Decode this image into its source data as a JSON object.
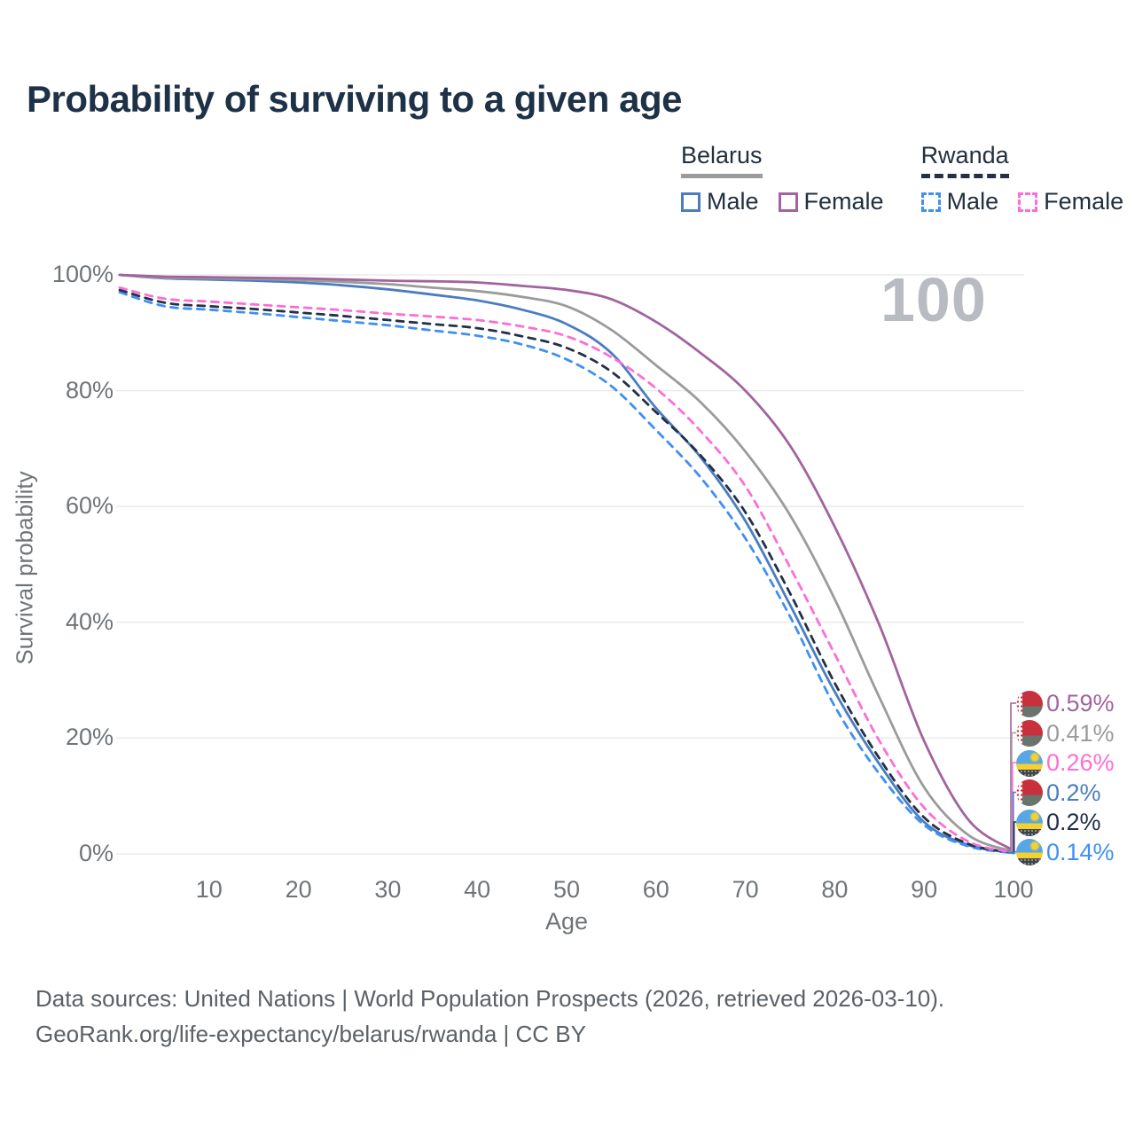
{
  "title": "Probability of surviving to a given age",
  "watermark_age": "100",
  "legend": {
    "groups": [
      {
        "country": "Belarus",
        "line_style": "solid",
        "underline_color": "#9b9b9b",
        "items": [
          {
            "label": "Male",
            "color": "#4a7dbf"
          },
          {
            "label": "Female",
            "color": "#a2649e"
          }
        ]
      },
      {
        "country": "Rwanda",
        "line_style": "dashed",
        "underline_color": "#233047",
        "items": [
          {
            "label": "Male",
            "color": "#4090f2"
          },
          {
            "label": "Female",
            "color": "#fc6ed6"
          }
        ]
      }
    ]
  },
  "axes": {
    "y_title": "Survival probability",
    "x_title": "Age"
  },
  "chart_data": {
    "type": "line",
    "title": "Probability of surviving to a given age",
    "xlabel": "Age",
    "ylabel": "Survival probability",
    "xlim": [
      0,
      100
    ],
    "ylim": [
      0,
      100
    ],
    "x_ticks": [
      10,
      20,
      30,
      40,
      50,
      60,
      70,
      80,
      90,
      100
    ],
    "y_ticks": [
      0,
      20,
      40,
      60,
      80,
      100
    ],
    "y_tick_labels": [
      "0%",
      "20%",
      "40%",
      "60%",
      "80%",
      "100%"
    ],
    "grid": "horizontal",
    "gridline_color": "#e6e8ea",
    "hover_age": 100,
    "x": [
      0,
      5,
      10,
      15,
      20,
      25,
      30,
      35,
      40,
      45,
      50,
      55,
      60,
      65,
      70,
      75,
      80,
      85,
      90,
      95,
      100
    ],
    "series": [
      {
        "name": "Belarus Female",
        "country": "Belarus",
        "sex": "Female",
        "color": "#a2649e",
        "dash": false,
        "flag": "belarus",
        "end_label": "0.59%",
        "values": [
          100,
          99.7,
          99.6,
          99.5,
          99.4,
          99.2,
          99.0,
          98.9,
          98.7,
          98.1,
          97.4,
          95.8,
          91.9,
          86.5,
          80.0,
          70.5,
          56.5,
          39.5,
          19.5,
          5.8,
          0.59
        ]
      },
      {
        "name": "Belarus Both sexes",
        "country": "Belarus",
        "sex": "Both",
        "color": "#9b9b9b",
        "dash": false,
        "flag": "belarus",
        "end_label": "0.41%",
        "values": [
          100,
          99.5,
          99.4,
          99.3,
          99.1,
          98.8,
          98.4,
          97.8,
          97.2,
          96.2,
          94.6,
          90.5,
          84.4,
          78.0,
          69.5,
          58.5,
          44.0,
          27.0,
          11.5,
          3.2,
          0.41
        ]
      },
      {
        "name": "Rwanda Female",
        "country": "Rwanda",
        "sex": "Female",
        "color": "#fc6ed6",
        "dash": true,
        "flag": "rwanda",
        "end_label": "0.26%",
        "values": [
          97.8,
          95.9,
          95.4,
          94.9,
          94.4,
          93.9,
          93.3,
          92.8,
          92.2,
          91.1,
          89.4,
          85.8,
          80.4,
          73.0,
          63.5,
          49.5,
          34.5,
          19.5,
          8.0,
          2.1,
          0.26
        ]
      },
      {
        "name": "Belarus Male",
        "country": "Belarus",
        "sex": "Male",
        "color": "#4a7dbf",
        "dash": false,
        "flag": "belarus",
        "end_label": "0.2%",
        "values": [
          100,
          99.4,
          99.2,
          99.0,
          98.7,
          98.2,
          97.5,
          96.6,
          95.6,
          94.0,
          91.5,
          86.5,
          77.0,
          68.5,
          57.5,
          43.0,
          28.0,
          15.5,
          5.5,
          1.5,
          0.2
        ]
      },
      {
        "name": "Rwanda Both sexes",
        "country": "Rwanda",
        "sex": "Both",
        "color": "#233047",
        "dash": true,
        "flag": "rwanda",
        "end_label": "0.2%",
        "values": [
          97.4,
          95.2,
          94.6,
          94.1,
          93.5,
          92.9,
          92.2,
          91.5,
          90.8,
          89.4,
          87.4,
          83.3,
          76.3,
          68.8,
          59.0,
          45.0,
          29.5,
          16.5,
          6.3,
          1.7,
          0.2
        ]
      },
      {
        "name": "Rwanda Male",
        "country": "Rwanda",
        "sex": "Male",
        "color": "#4090f2",
        "dash": true,
        "flag": "rwanda",
        "end_label": "0.14%",
        "values": [
          97.0,
          94.6,
          94.0,
          93.4,
          92.7,
          92.0,
          91.3,
          90.4,
          89.5,
          88.0,
          85.4,
          80.8,
          73.2,
          65.0,
          54.5,
          41.0,
          25.5,
          13.8,
          5.0,
          1.3,
          0.14
        ]
      }
    ]
  },
  "footer": {
    "line1": "Data sources: United Nations | World Population Prospects (2026, retrieved 2026-03-10).",
    "line2": "GeoRank.org/life-expectancy/belarus/rwanda | CC BY"
  }
}
